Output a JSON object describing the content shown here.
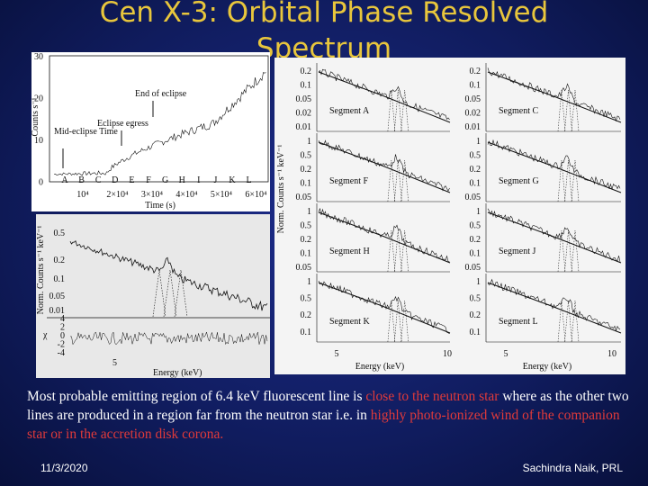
{
  "header": {
    "title": "Cen X-3: Orbital Phase Resolved Spectrum"
  },
  "figures": {
    "light_curve": {
      "y_label": "Counts s⁻¹",
      "x_label": "Time (s)",
      "yticks": [
        "30",
        "20",
        "10",
        "0"
      ],
      "xticks": [
        "10⁴",
        "2×10⁴",
        "3×10⁴",
        "4×10⁴",
        "5×10⁴",
        "6×10⁴"
      ],
      "segments": [
        "A",
        "B",
        "C",
        "D",
        "E",
        "F",
        "G",
        "H",
        "I",
        "J",
        "K",
        "L"
      ],
      "annotations": [
        "End of eclipse",
        "Eclipse egress",
        "Mid-eclipse Time"
      ]
    },
    "spectrum": {
      "y_label": "Norm. Counts s⁻¹ keV⁻¹",
      "yticks": [
        "0.5",
        "0.2",
        "0.1",
        "0.05",
        "0.01"
      ],
      "residual_label": "χ",
      "residual_ticks": [
        "4",
        "2",
        "0",
        "-2",
        "-4"
      ],
      "xticks": [
        "5"
      ],
      "x_label": "Energy (keV)"
    },
    "segments": {
      "y_label": "Norm. Counts s⁻¹ keV⁻¹",
      "x_label": "Energy (keV)",
      "xticks": [
        "5",
        "10"
      ],
      "panels": [
        {
          "name": "Segment A",
          "yticks": [
            "0.2",
            "0.1",
            "0.05",
            "0.02",
            "0.01"
          ]
        },
        {
          "name": "Segment C",
          "yticks": [
            "0.2",
            "0.1",
            "0.05",
            "0.02",
            "0.01"
          ]
        },
        {
          "name": "Segment F",
          "yticks": [
            "1",
            "0.5",
            "0.2",
            "0.1",
            "0.05"
          ]
        },
        {
          "name": "Segment G",
          "yticks": [
            "1",
            "0.5",
            "0.2",
            "0.1",
            "0.05"
          ]
        },
        {
          "name": "Segment H",
          "yticks": [
            "1",
            "0.5",
            "0.2",
            "0.1",
            "0.05"
          ]
        },
        {
          "name": "Segment J",
          "yticks": [
            "1",
            "0.5",
            "0.2",
            "0.1",
            "0.05"
          ]
        },
        {
          "name": "Segment K",
          "yticks": [
            "1",
            "0.5",
            "0.2",
            "0.1"
          ]
        },
        {
          "name": "Segment L",
          "yticks": [
            "1",
            "0.5",
            "0.2",
            "0.1"
          ]
        }
      ]
    }
  },
  "body": {
    "segments": [
      {
        "text": "Most probable  emitting region of 6.4 keV fluorescent line is ",
        "highlight": false
      },
      {
        "text": "close to the neutron star",
        "highlight": true
      },
      {
        "text": " where as the other two lines are produced in a region far from the neutron star  i.e.  in ",
        "highlight": false
      },
      {
        "text": "highly photo-ionized wind of the companion star or in the accretion  disk corona.",
        "highlight": true
      }
    ]
  },
  "footer": {
    "date": "11/3/2020",
    "author": "Sachindra Naik, PRL"
  }
}
